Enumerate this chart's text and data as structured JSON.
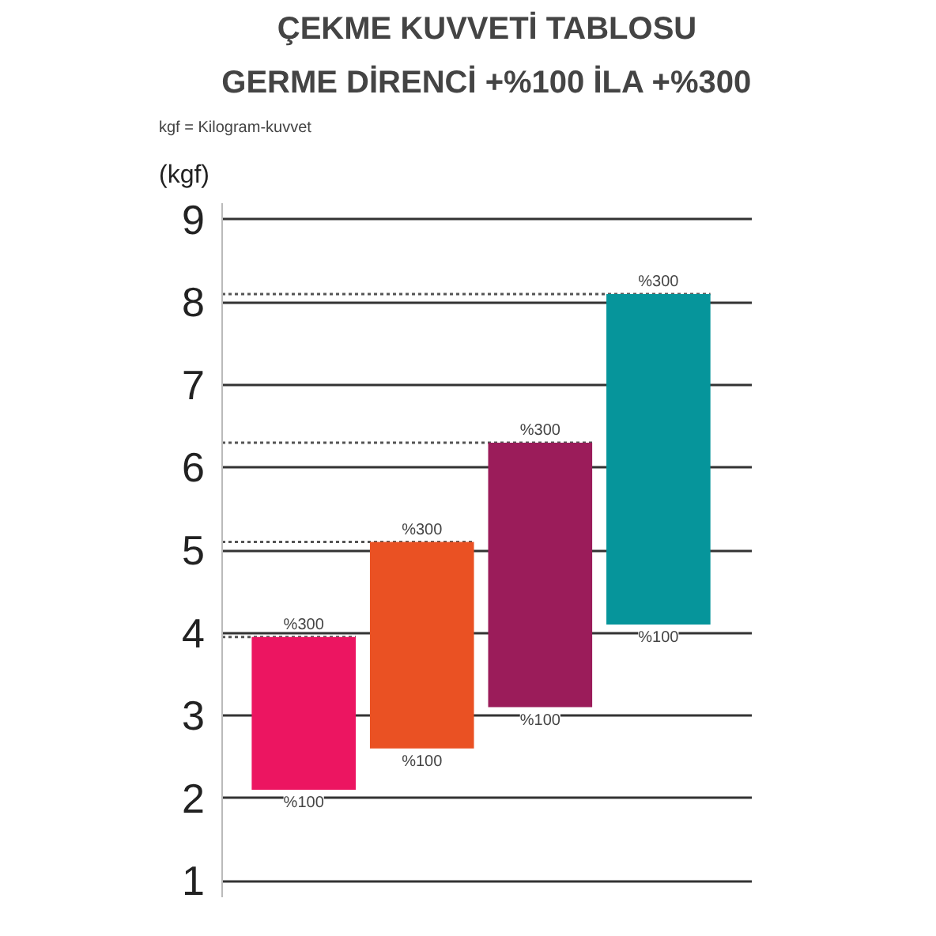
{
  "chart_data": {
    "type": "bar",
    "title": "ÇEKME KUVVETİ TABLOSU",
    "subtitle": "GERME DİRENCİ +%100 İLA +%300",
    "ylabel": "(kgf)",
    "categories": [
      null,
      null,
      null,
      null
    ],
    "base": [
      2.1,
      2.6,
      3.1,
      4.1
    ],
    "values": [
      1.85,
      2.5,
      3.2,
      4.0
    ],
    "colors": [
      "#ec1561",
      "#ea5123",
      "#9b1c5a",
      "#06959b"
    ],
    "ylim": [
      0.8,
      9.2
    ],
    "yticks": [
      1,
      2,
      3,
      4,
      5,
      6,
      7,
      8,
      9
    ],
    "grid": "y",
    "ref_lines": [
      {
        "axis": "y",
        "value": 3.95,
        "line_style": "dotted",
        "color": "#555555"
      },
      {
        "axis": "y",
        "value": 5.1,
        "line_style": "dotted",
        "color": "#555555"
      },
      {
        "axis": "y",
        "value": 6.3,
        "line_style": "dotted",
        "color": "#555555"
      },
      {
        "axis": "y",
        "value": 8.1,
        "line_style": "dotted",
        "color": "#555555"
      }
    ],
    "annotations": [
      "kgf = Kilogram-kuvvet",
      {
        "text": "%300",
        "y": 3.95
      },
      {
        "text": "%100",
        "y": 2.1
      },
      {
        "text": "%300",
        "y": 5.1
      },
      {
        "text": "%100",
        "y": 2.6
      },
      {
        "text": "%300",
        "y": 6.3
      },
      {
        "text": "%100",
        "y": 3.1
      },
      {
        "text": "%300",
        "y": 8.1
      },
      {
        "text": "%100",
        "y": 4.1
      }
    ]
  }
}
